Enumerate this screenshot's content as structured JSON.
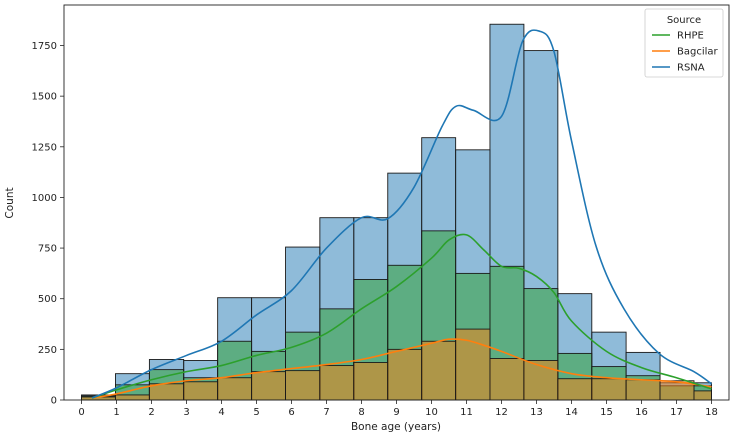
{
  "chart_data": {
    "type": "bar",
    "subtype": "overlaid-histogram-with-kde",
    "xlabel": "Bone age (years)",
    "ylabel": "Count",
    "xlim": [
      -0.5,
      18.5
    ],
    "ylim": [
      0,
      1950
    ],
    "x_ticks": [
      0,
      1,
      2,
      3,
      4,
      5,
      6,
      7,
      8,
      9,
      10,
      11,
      12,
      13,
      14,
      15,
      16,
      17,
      18
    ],
    "y_ticks": [
      0,
      250,
      500,
      750,
      1000,
      1250,
      1500,
      1750
    ],
    "bin_edges": [
      0.0,
      0.97,
      1.94,
      2.92,
      3.89,
      4.86,
      5.83,
      6.81,
      7.78,
      8.75,
      9.72,
      10.69,
      11.67,
      12.64,
      13.61,
      14.58,
      15.56,
      16.53,
      17.5,
      18.0
    ],
    "legend": {
      "title": "Source",
      "placement": "top-right"
    },
    "series": [
      {
        "name": "RSNA",
        "color": "#1f77b4",
        "bar_values": [
          25,
          130,
          200,
          195,
          505,
          505,
          755,
          900,
          900,
          1120,
          1295,
          1235,
          1855,
          1725,
          525,
          335,
          235,
          85,
          85
        ],
        "kde": {
          "x": [
            0.3,
            1,
            2,
            3,
            4,
            5,
            6,
            7,
            8,
            8.75,
            9.5,
            10.3,
            10.7,
            11.2,
            12,
            12.6,
            13.1,
            13.5,
            14,
            14.7,
            15.5,
            16.5,
            17.5,
            18
          ],
          "y": [
            10,
            60,
            150,
            220,
            290,
            420,
            540,
            750,
            900,
            895,
            1050,
            1350,
            1450,
            1430,
            1400,
            1770,
            1820,
            1720,
            1280,
            760,
            450,
            230,
            140,
            80
          ]
        }
      },
      {
        "name": "RHPE",
        "color": "#2ca02c",
        "bar_values": [
          20,
          75,
          150,
          110,
          290,
          240,
          335,
          450,
          595,
          665,
          835,
          625,
          660,
          550,
          230,
          165,
          120,
          70,
          70
        ],
        "kde": {
          "x": [
            0.3,
            1,
            2,
            3,
            4,
            5,
            6,
            7,
            8,
            9,
            10,
            10.5,
            11,
            11.5,
            12,
            12.5,
            13,
            13.5,
            14,
            15,
            16,
            17,
            18
          ],
          "y": [
            10,
            50,
            100,
            140,
            170,
            220,
            260,
            330,
            450,
            560,
            700,
            790,
            815,
            740,
            660,
            650,
            610,
            530,
            390,
            240,
            160,
            110,
            55
          ]
        }
      },
      {
        "name": "Bagcilar",
        "color": "#ff7f0e",
        "bar_values": [
          15,
          25,
          80,
          90,
          110,
          140,
          145,
          170,
          185,
          250,
          290,
          350,
          205,
          195,
          105,
          105,
          100,
          95,
          45
        ],
        "kde": {
          "x": [
            0.3,
            1,
            2,
            3,
            4,
            5,
            6,
            7,
            8,
            9,
            10,
            10.5,
            11,
            11.5,
            12,
            13,
            14,
            15,
            16,
            17,
            18
          ],
          "y": [
            10,
            30,
            70,
            95,
            110,
            135,
            155,
            175,
            200,
            240,
            280,
            300,
            295,
            270,
            240,
            175,
            130,
            110,
            100,
            90,
            65
          ]
        }
      }
    ]
  }
}
